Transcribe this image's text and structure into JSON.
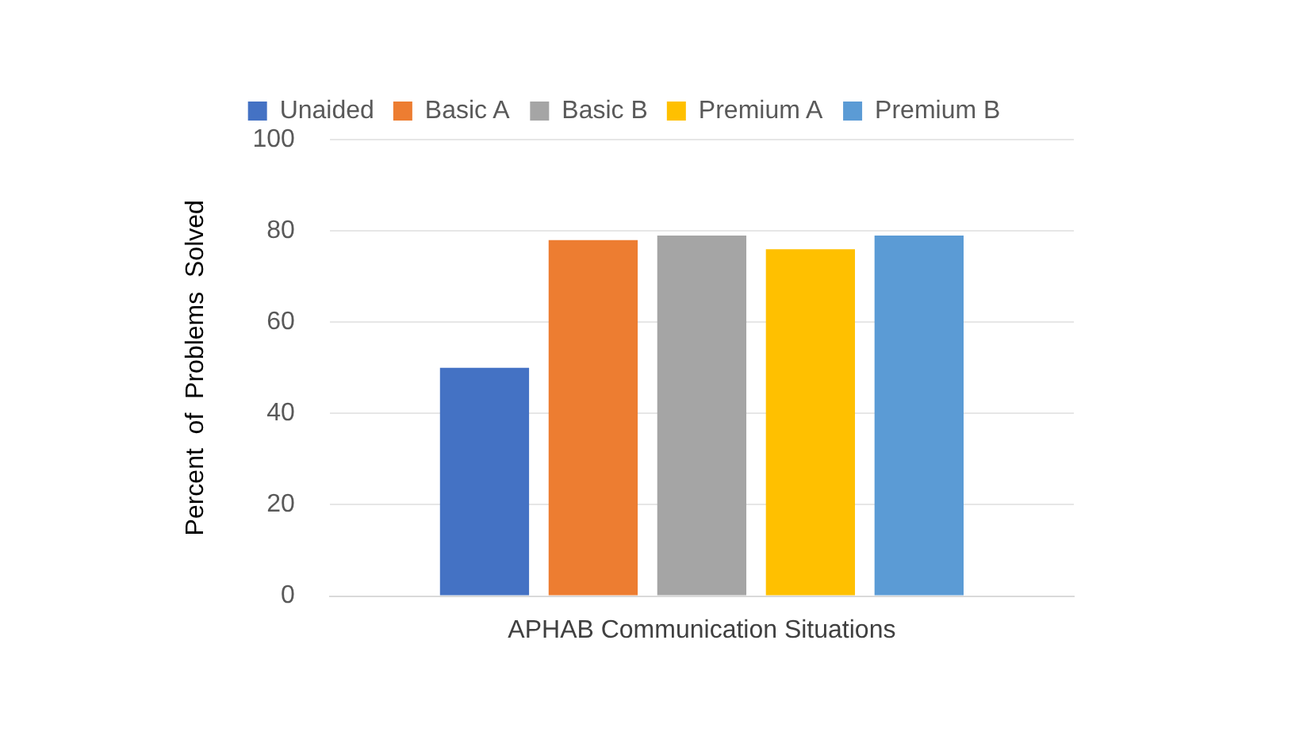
{
  "chart_data": {
    "type": "bar",
    "ylabel": "Percent  of  Problems  Solved",
    "categories": [
      "APHAB Communication Situations"
    ],
    "series": [
      {
        "name": "Unaided",
        "color": "#4472c4",
        "values": [
          50
        ]
      },
      {
        "name": "Basic A",
        "color": "#ed7d31",
        "values": [
          78
        ]
      },
      {
        "name": "Basic B",
        "color": "#a5a5a5",
        "values": [
          79
        ]
      },
      {
        "name": "Premium A",
        "color": "#ffc000",
        "values": [
          76
        ]
      },
      {
        "name": "Premium B",
        "color": "#5b9bd5",
        "values": [
          79
        ]
      }
    ],
    "ylim": [
      0,
      100
    ],
    "yticks": [
      0,
      20,
      40,
      60,
      80,
      100
    ],
    "grid": "y",
    "legend": "top"
  }
}
